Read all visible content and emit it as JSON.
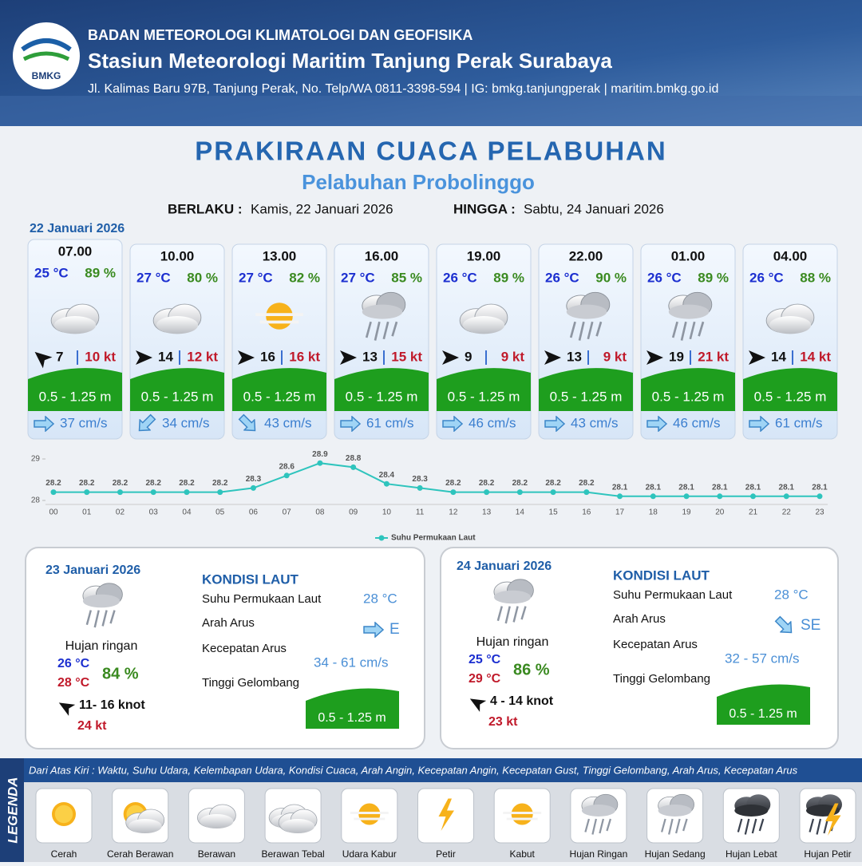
{
  "header": {
    "logo": "BMKG",
    "agency": "BADAN METEOROLOGI KLIMATOLOGI DAN GEOFISIKA",
    "station": "Stasiun Meteorologi Maritim Tanjung Perak Surabaya",
    "address": "Jl. Kalimas Baru 97B, Tanjung Perak, No. Telp/WA 0811-3398-594 | IG: bmkg.tanjungperak | maritim.bmkg.go.id"
  },
  "title": "PRAKIRAAN CUACA PELABUHAN",
  "subtitle": "Pelabuhan Probolinggo",
  "validity": {
    "from_label": "BERLAKU :",
    "from": "Kamis, 22 Januari 2026",
    "to_label": "HINGGA :",
    "to": "Sabtu, 24 Januari 2026"
  },
  "forecast": {
    "date": "22 Januari 2026",
    "slots": [
      {
        "time": "07.00",
        "temp": "25 °C",
        "rh": "89 %",
        "wind": "7",
        "gust": "10 kt",
        "wave": "0.5 - 1.25 m",
        "current": "37 cm/s"
      },
      {
        "time": "10.00",
        "temp": "27 °C",
        "rh": "80 %",
        "wind": "14",
        "gust": "12 kt",
        "wave": "0.5 - 1.25 m",
        "current": "34 cm/s"
      },
      {
        "time": "13.00",
        "temp": "27 °C",
        "rh": "82 %",
        "wind": "16",
        "gust": "16 kt",
        "wave": "0.5 - 1.25 m",
        "current": "43 cm/s"
      },
      {
        "time": "16.00",
        "temp": "27 °C",
        "rh": "85 %",
        "wind": "13",
        "gust": "15 kt",
        "wave": "0.5 - 1.25 m",
        "current": "61 cm/s"
      },
      {
        "time": "19.00",
        "temp": "26 °C",
        "rh": "89 %",
        "wind": "9",
        "gust": "9 kt",
        "wave": "0.5 - 1.25 m",
        "current": "46 cm/s"
      },
      {
        "time": "22.00",
        "temp": "26 °C",
        "rh": "90 %",
        "wind": "13",
        "gust": "9 kt",
        "wave": "0.5 - 1.25 m",
        "current": "43 cm/s"
      },
      {
        "time": "01.00",
        "temp": "26 °C",
        "rh": "89 %",
        "wind": "19",
        "gust": "21 kt",
        "wave": "0.5 - 1.25 m",
        "current": "46 cm/s"
      },
      {
        "time": "04.00",
        "temp": "26 °C",
        "rh": "88 %",
        "wind": "14",
        "gust": "14 kt",
        "wave": "0.5 - 1.25 m",
        "current": "61 cm/s"
      }
    ]
  },
  "chart_data": {
    "type": "line",
    "categories": [
      "00",
      "01",
      "02",
      "03",
      "04",
      "05",
      "06",
      "07",
      "08",
      "09",
      "10",
      "11",
      "12",
      "13",
      "14",
      "15",
      "16",
      "17",
      "18",
      "19",
      "20",
      "21",
      "22",
      "23"
    ],
    "series": [
      {
        "name": "Suhu Permukaan Laut",
        "color": "#2ec4bd",
        "values": [
          28.2,
          28.2,
          28.2,
          28.2,
          28.2,
          28.2,
          28.3,
          28.6,
          28.9,
          28.8,
          28.4,
          28.3,
          28.2,
          28.2,
          28.2,
          28.2,
          28.2,
          28.1,
          28.1,
          28.1,
          28.1,
          28.1,
          28.1,
          28.1
        ]
      }
    ],
    "ylim": [
      28,
      29
    ],
    "yticks": [
      28,
      29
    ],
    "legend": "bottom"
  },
  "outlook": [
    {
      "date": "23 Januari 2026",
      "condition": "Hujan ringan",
      "tmin": "26 °C",
      "tmax": "28 °C",
      "rh": "84 %",
      "wind": "11- 16 knot",
      "gust": "24 kt",
      "sea_title": "KONDISI LAUT",
      "sea": [
        {
          "label": "Suhu Permukaan Laut",
          "value": "28 °C"
        },
        {
          "label": "Arah Arus",
          "value": "E"
        },
        {
          "label": "Kecepatan Arus",
          "value": "34 - 61 cm/s"
        },
        {
          "label": "Tinggi Gelombang",
          "value": "0.5 - 1.25 m"
        }
      ]
    },
    {
      "date": "24 Januari 2026",
      "condition": "Hujan ringan",
      "tmin": "25 °C",
      "tmax": "29 °C",
      "rh": "86 %",
      "wind": "4 - 14 knot",
      "gust": "23 kt",
      "sea_title": "KONDISI LAUT",
      "sea": [
        {
          "label": "Suhu Permukaan Laut",
          "value": "28 °C"
        },
        {
          "label": "Arah Arus",
          "value": "SE"
        },
        {
          "label": "Kecepatan Arus",
          "value": "32 - 57 cm/s"
        },
        {
          "label": "Tinggi Gelombang",
          "value": "0.5 - 1.25 m"
        }
      ]
    }
  ],
  "legend": {
    "title": "LEGENDA",
    "description": "Dari Atas Kiri : Waktu, Suhu Udara, Kelembapan Udara, Kondisi Cuaca, Arah Angin, Kecepatan Angin, Kecepatan Gust, Tinggi Gelombang, Arah Arus, Kecepatan Arus",
    "items": [
      "Cerah",
      "Cerah Berawan",
      "Berawan",
      "Berawan Tebal",
      "Udara Kabur",
      "Petir",
      "Kabut",
      "Hujan Ringan",
      "Hujan Sedang",
      "Hujan Lebat",
      "Hujan Petir"
    ]
  }
}
